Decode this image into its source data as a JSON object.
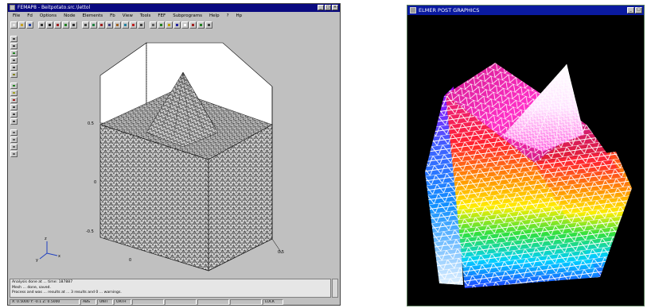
{
  "left_window": {
    "title": "FEMAP8 - Beitpotato.src.\\lettol",
    "menu": [
      "File",
      "Fd",
      "Options",
      "Node",
      "Elements",
      "Fb",
      "View",
      "Tools",
      "FEF",
      "Subprograms",
      "Help",
      "?",
      "Hp"
    ],
    "toolbar_icons": [
      {
        "name": "new-file-icon",
        "color": "#e8e8e8"
      },
      {
        "name": "open-folder-icon",
        "color": "#c8a020"
      },
      {
        "name": "save-icon",
        "color": "#2040a0"
      },
      {
        "name": "print-icon",
        "color": "#303030"
      },
      {
        "name": "zoom-icon",
        "color": "#202020"
      },
      {
        "name": "rotate-icon",
        "color": "#a02020"
      },
      {
        "name": "pan-icon",
        "color": "#208020"
      },
      {
        "name": "line-icon",
        "color": "#303030"
      },
      {
        "name": "grid-icon",
        "color": "#404040"
      },
      {
        "name": "mesh-icon",
        "color": "#208040"
      },
      {
        "name": "node-icon",
        "color": "#a02020"
      },
      {
        "name": "element-icon",
        "color": "#404080"
      },
      {
        "name": "surface-icon",
        "color": "#a06020"
      },
      {
        "name": "solid-icon",
        "color": "#2080a0"
      },
      {
        "name": "contour-icon",
        "color": "#c02020"
      },
      {
        "name": "wireframe-icon",
        "color": "#404040"
      },
      {
        "name": "hidden-line-icon",
        "color": "#606060"
      },
      {
        "name": "shaded-icon",
        "color": "#208020"
      },
      {
        "name": "light-icon",
        "color": "#c0a000"
      },
      {
        "name": "measure-icon",
        "color": "#2020a0"
      },
      {
        "name": "select-icon",
        "color": "#ffffff"
      },
      {
        "name": "filter-icon",
        "color": "#a02020"
      },
      {
        "name": "refresh-icon",
        "color": "#208020"
      },
      {
        "name": "help-icon",
        "color": "#404040"
      }
    ],
    "side_tools": [
      {
        "name": "side-pointer-icon",
        "color": "#404040"
      },
      {
        "name": "side-text-icon",
        "color": "#404040"
      },
      {
        "name": "side-line-icon",
        "color": "#208020"
      },
      {
        "name": "side-arc-icon",
        "color": "#404040"
      },
      {
        "name": "side-curve-icon",
        "color": "#404040"
      },
      {
        "name": "side-point-icon",
        "color": "#808020"
      },
      {
        "name": "side-mesh-icon",
        "color": "#208020"
      },
      {
        "name": "side-refine-icon",
        "color": "#a0a020"
      },
      {
        "name": "side-delete-icon",
        "color": "#a02020"
      },
      {
        "name": "side-copy-icon",
        "color": "#404040"
      },
      {
        "name": "side-move-icon",
        "color": "#404040"
      },
      {
        "name": "side-scale-icon",
        "color": "#404040"
      },
      {
        "name": "side-view-top-icon",
        "color": "#606060"
      },
      {
        "name": "side-view-front-icon",
        "color": "#606060"
      },
      {
        "name": "side-view-side-icon",
        "color": "#606060"
      },
      {
        "name": "side-view-iso-icon",
        "color": "#606060"
      }
    ],
    "axis_labels": {
      "top_left": "0.5",
      "mid_left": "0",
      "bottom_left": "-0.5",
      "bottom_mid": "0",
      "bottom_right": "0.5"
    },
    "log_lines": [
      "Analysis done at ... time: 187887",
      "Mesh ... done, saved.",
      "Process and was ... results at ... 3 results and 0 ... warnings."
    ],
    "status_fields": [
      "X: 0.5000  Y: -0.1  Z: 0.5000",
      "ABS",
      "UNIT",
      "ORTH",
      "",
      "",
      "",
      "",
      "LOCK"
    ]
  },
  "right_window": {
    "title": "ELMER POST GRAPHICS"
  }
}
